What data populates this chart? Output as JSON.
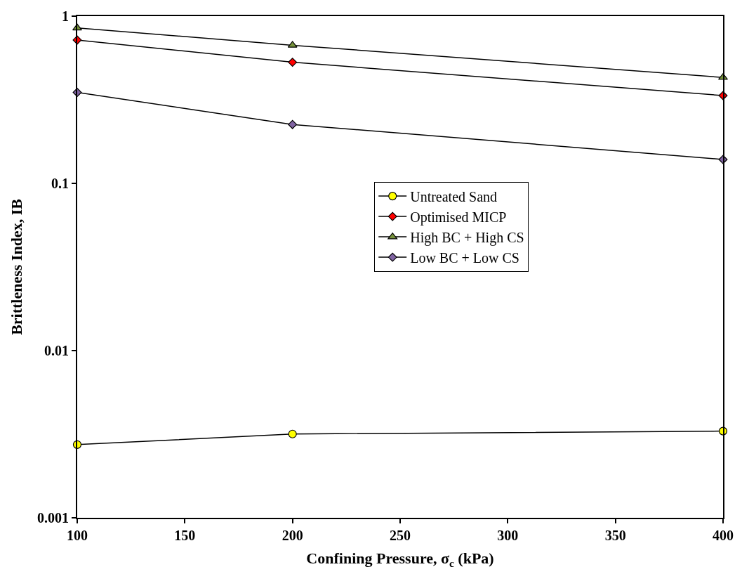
{
  "chart_data": {
    "type": "line",
    "xlabel": "Confining Pressure, σ$_{c}$ (kPa)",
    "ylabel": "Brittleness Index, IB",
    "log": "y",
    "legend": "right",
    "line_style": "solid",
    "x": [
      100,
      200,
      400
    ],
    "xlim": [
      100,
      400
    ],
    "xticks": [
      100,
      150,
      200,
      250,
      300,
      350,
      400
    ],
    "ylim": [
      0.001,
      1
    ],
    "yticks": [
      0.001,
      0.01,
      0.1,
      1
    ],
    "series": [
      {
        "name": "Untreated Sand",
        "color": "#ffff00",
        "marker": "circle",
        "values": [
          0.00274,
          0.00317,
          0.0033
        ]
      },
      {
        "name": "Optimised MICP",
        "color": "#ff0000",
        "marker": "diamond",
        "values": [
          0.72,
          0.53,
          0.335
        ]
      },
      {
        "name": "High BC + High CS",
        "color": "#77933c",
        "marker": "triangle",
        "values": [
          0.85,
          0.67,
          0.43
        ]
      },
      {
        "name": "Low BC + Low CS",
        "color": "#8064a2",
        "marker": "diamond",
        "values": [
          0.35,
          0.225,
          0.139
        ]
      }
    ]
  }
}
